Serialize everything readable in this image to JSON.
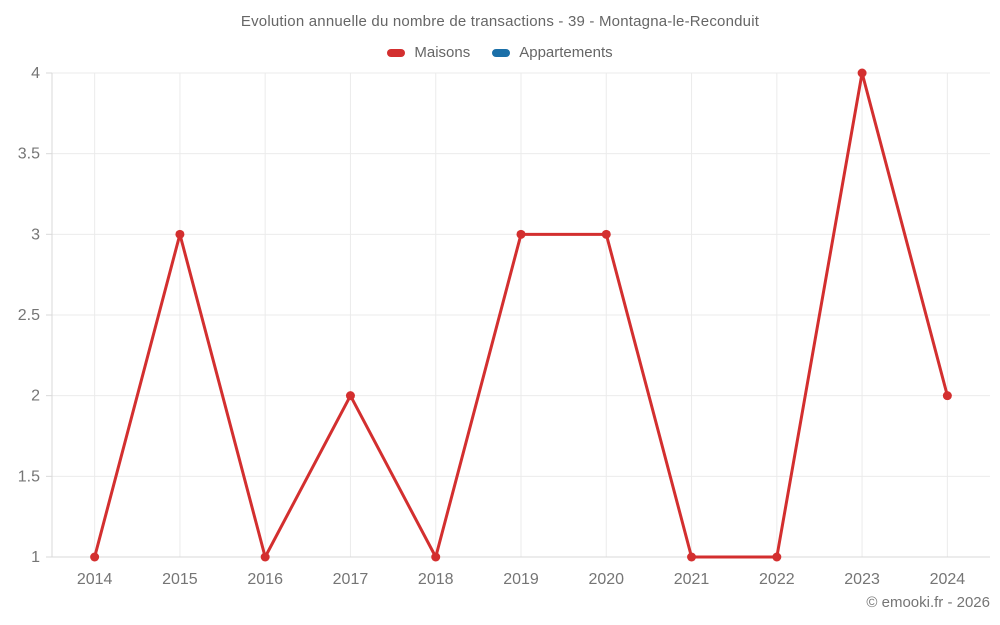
{
  "header": {
    "title": "Evolution annuelle du nombre de transactions - 39 - Montagna-le-Reconduit"
  },
  "legend": {
    "items": [
      {
        "label": "Maisons",
        "color": "#d32f2f"
      },
      {
        "label": "Appartements",
        "color": "#1a6fa8"
      }
    ]
  },
  "footer": {
    "copyright": "© emooki.fr - 2026"
  },
  "colors": {
    "grid": "#ebebeb",
    "axis": "#d9d9d9",
    "tick_text": "#757575",
    "maisons": "#d32f2f",
    "appartements": "#1a6fa8"
  },
  "chart_data": {
    "type": "line",
    "title": "Evolution annuelle du nombre de transactions - 39 - Montagna-le-Reconduit",
    "categories": [
      "2014",
      "2015",
      "2016",
      "2017",
      "2018",
      "2019",
      "2020",
      "2021",
      "2022",
      "2023",
      "2024"
    ],
    "series": [
      {
        "name": "Maisons",
        "color": "#d32f2f",
        "values": [
          1,
          3,
          1,
          2,
          1,
          3,
          3,
          1,
          1,
          4,
          2
        ]
      },
      {
        "name": "Appartements",
        "color": "#1a6fa8",
        "values": []
      }
    ],
    "xlabel": "",
    "ylabel": "",
    "ylim": [
      1,
      4
    ],
    "yticks": [
      1,
      1.5,
      2,
      2.5,
      3,
      3.5,
      4
    ],
    "grid": true,
    "legend_position": "top"
  }
}
